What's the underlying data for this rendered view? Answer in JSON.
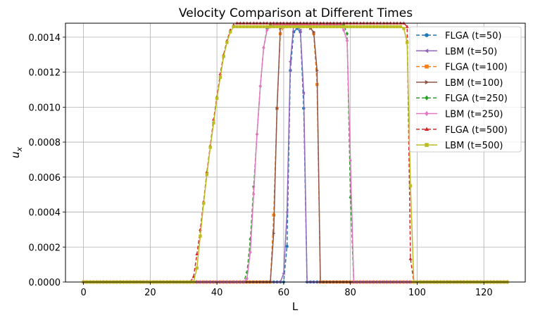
{
  "chart_data": {
    "type": "line",
    "title": "Velocity Comparison at Different Times",
    "xlabel": "L",
    "ylabel": "u",
    "ylabel_subscript": "x",
    "xlim": [
      -5.4,
      132.4
    ],
    "ylim": [
      0,
      0.00148
    ],
    "xticks": [
      0,
      20,
      40,
      60,
      80,
      100,
      120
    ],
    "xtick_labels": [
      "0",
      "20",
      "40",
      "60",
      "80",
      "100",
      "120"
    ],
    "yticks": [
      0,
      0.0002,
      0.0004,
      0.0006,
      0.0008,
      0.001,
      0.0012,
      0.0014
    ],
    "ytick_labels": [
      "0.0000",
      "0.0002",
      "0.0004",
      "0.0006",
      "0.0008",
      "0.0010",
      "0.0012",
      "0.0014"
    ],
    "grid": true,
    "legend_position": "top-right",
    "series": [
      {
        "name": "FLGA (t=50)",
        "color": "#1f77b4",
        "dashed": true,
        "marker": "circle",
        "points": [
          [
            0,
            0
          ],
          [
            60,
            0
          ],
          [
            61,
            0.000204
          ],
          [
            62,
            0.00121
          ],
          [
            63,
            0.00143
          ],
          [
            64,
            0.00145
          ],
          [
            65,
            0.00143
          ],
          [
            66,
            0.000993
          ],
          [
            67,
            0
          ],
          [
            127,
            0
          ]
        ]
      },
      {
        "name": "LBM (t=50)",
        "color": "#9467bd",
        "dashed": false,
        "marker": "triangle-left",
        "points": [
          [
            0,
            0
          ],
          [
            59,
            0
          ],
          [
            60,
            5e-05
          ],
          [
            61,
            0.0004
          ],
          [
            62,
            0.00126
          ],
          [
            63,
            0.00147
          ],
          [
            64,
            0.00147
          ],
          [
            65,
            0.00144
          ],
          [
            66,
            0.00108
          ],
          [
            67,
            0
          ],
          [
            127,
            0
          ]
        ]
      },
      {
        "name": "FLGA (t=100)",
        "color": "#ff7f0e",
        "dashed": true,
        "marker": "square",
        "points": [
          [
            0,
            0
          ],
          [
            56,
            0
          ],
          [
            57,
            0.000383
          ],
          [
            58,
            0.000993
          ],
          [
            59,
            0.00142
          ],
          [
            60,
            0.00146
          ],
          [
            61,
            0.00147
          ],
          [
            62,
            0.00147
          ],
          [
            66,
            0.00147
          ],
          [
            67,
            0.00147
          ],
          [
            68,
            0.00146
          ],
          [
            69,
            0.00142
          ],
          [
            70,
            0.00113
          ],
          [
            71,
            0
          ],
          [
            127,
            0
          ]
        ]
      },
      {
        "name": "LBM (t=100)",
        "color": "#8c564b",
        "dashed": false,
        "marker": "triangle-right",
        "points": [
          [
            0,
            0
          ],
          [
            56,
            0
          ],
          [
            57,
            0.000278
          ],
          [
            58,
            0.000993
          ],
          [
            59,
            0.00145
          ],
          [
            60,
            0.00147
          ],
          [
            67,
            0.00147
          ],
          [
            68,
            0.00145
          ],
          [
            69,
            0.00143
          ],
          [
            70,
            0.00121
          ],
          [
            71,
            0
          ],
          [
            127,
            0
          ]
        ]
      },
      {
        "name": "FLGA (t=250)",
        "color": "#2ca02c",
        "dashed": true,
        "marker": "diamond",
        "points": [
          [
            0,
            0
          ],
          [
            48,
            0
          ],
          [
            49,
            5.5e-05
          ],
          [
            50,
            0.000245
          ],
          [
            51,
            0.000545
          ],
          [
            52,
            0.000845
          ],
          [
            53,
            0.00112
          ],
          [
            54,
            0.00134
          ],
          [
            55,
            0.00145
          ],
          [
            56,
            0.00147
          ],
          [
            78,
            0.00147
          ],
          [
            79,
            0.00142
          ],
          [
            80,
            0.000484
          ],
          [
            81,
            0
          ],
          [
            127,
            0
          ]
        ]
      },
      {
        "name": "LBM (t=250)",
        "color": "#e377c2",
        "dashed": false,
        "marker": "diamond",
        "points": [
          [
            0,
            0
          ],
          [
            48,
            0
          ],
          [
            49,
            2e-05
          ],
          [
            50,
            0.00017
          ],
          [
            51,
            0.000503
          ],
          [
            52,
            0.000845
          ],
          [
            53,
            0.00112
          ],
          [
            54,
            0.00134
          ],
          [
            55,
            0.00144
          ],
          [
            56,
            0.00146
          ],
          [
            57,
            0.00147
          ],
          [
            77,
            0.00147
          ],
          [
            78,
            0.00144
          ],
          [
            79,
            0.00138
          ],
          [
            80,
            0.000695
          ],
          [
            81,
            0
          ],
          [
            127,
            0
          ]
        ]
      },
      {
        "name": "FLGA (t=500)",
        "color": "#d62728",
        "dashed": true,
        "marker": "triangle-up",
        "points": [
          [
            0,
            0
          ],
          [
            32,
            0
          ],
          [
            33,
            3e-05
          ],
          [
            34,
            0.00016
          ],
          [
            35,
            0.0003
          ],
          [
            36,
            0.00046
          ],
          [
            37,
            0.00063
          ],
          [
            38,
            0.00078
          ],
          [
            39,
            0.00093
          ],
          [
            40,
            0.00106
          ],
          [
            41,
            0.00119
          ],
          [
            42,
            0.0013
          ],
          [
            43,
            0.00138
          ],
          [
            44,
            0.00144
          ],
          [
            45,
            0.00147
          ],
          [
            46,
            0.00148
          ],
          [
            96,
            0.00148
          ],
          [
            97,
            0.00146
          ],
          [
            98,
            0.000133
          ],
          [
            99,
            0
          ],
          [
            127,
            0
          ]
        ]
      },
      {
        "name": "LBM (t=500)",
        "color": "#bcbd22",
        "dashed": false,
        "marker": "square",
        "points": [
          [
            0,
            0
          ],
          [
            33,
            0
          ],
          [
            34,
            8e-05
          ],
          [
            35,
            0.000263
          ],
          [
            36,
            0.00045
          ],
          [
            37,
            0.000615
          ],
          [
            38,
            0.00077
          ],
          [
            39,
            0.00091
          ],
          [
            40,
            0.00105
          ],
          [
            41,
            0.00117
          ],
          [
            42,
            0.00129
          ],
          [
            43,
            0.00137
          ],
          [
            44,
            0.00143
          ],
          [
            45,
            0.00146
          ],
          [
            46,
            0.00146
          ],
          [
            95,
            0.00146
          ],
          [
            96,
            0.00145
          ],
          [
            97,
            0.00137
          ],
          [
            98,
            0.00055
          ],
          [
            99,
            0
          ],
          [
            127,
            0
          ]
        ]
      }
    ]
  }
}
